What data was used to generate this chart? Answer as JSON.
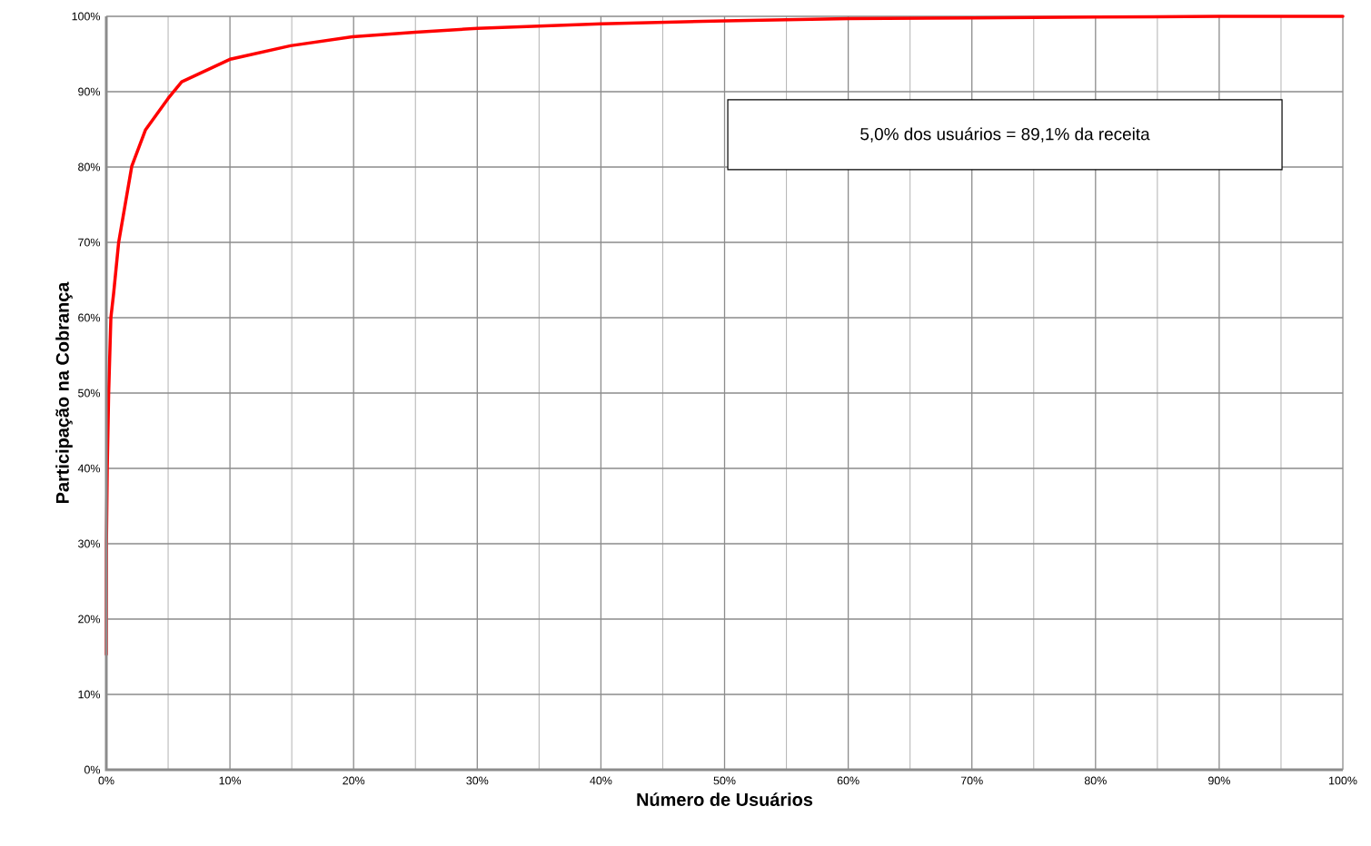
{
  "chart_data": {
    "type": "line",
    "xlabel": "Número de Usuários",
    "ylabel": "Participação na Cobrança",
    "annotations": [
      "5,0% dos usuários = 89,1% da receita"
    ],
    "x": [
      0,
      0.01,
      0.08,
      0.19,
      0.37,
      0.59,
      1.0,
      2.06,
      3.16,
      5.0,
      6.1,
      10.0,
      14.9,
      19.9,
      25,
      30,
      40,
      50,
      60,
      70,
      80,
      90,
      100
    ],
    "series": [
      {
        "color": "#ff0000",
        "values": [
          15.3,
          29.9,
          40.2,
          49.9,
          60,
          63.2,
          70.0,
          80.1,
          84.9,
          89.1,
          91.3,
          94.3,
          96.1,
          97.3,
          97.9,
          98.4,
          99.0,
          99.4,
          99.7,
          99.8,
          99.9,
          100,
          100
        ]
      }
    ],
    "xlim": [
      0,
      100
    ],
    "ylim": [
      0,
      100
    ],
    "xticks": [
      {
        "value": 0,
        "label": "0%"
      },
      {
        "value": 5,
        "label": null
      },
      {
        "value": 10,
        "label": "10%"
      },
      {
        "value": 15,
        "label": null
      },
      {
        "value": 20,
        "label": "20%"
      },
      {
        "value": 25,
        "label": null
      },
      {
        "value": 30,
        "label": "30%"
      },
      {
        "value": 35,
        "label": null
      },
      {
        "value": 40,
        "label": "40%"
      },
      {
        "value": 45,
        "label": null
      },
      {
        "value": 50,
        "label": "50%"
      },
      {
        "value": 55,
        "label": null
      },
      {
        "value": 60,
        "label": "60%"
      },
      {
        "value": 65,
        "label": null
      },
      {
        "value": 70,
        "label": "70%"
      },
      {
        "value": 75,
        "label": null
      },
      {
        "value": 80,
        "label": "80%"
      },
      {
        "value": 85,
        "label": null
      },
      {
        "value": 90,
        "label": "90%"
      },
      {
        "value": 95,
        "label": null
      },
      {
        "value": 100,
        "label": "100%"
      }
    ],
    "yticks": [
      {
        "value": 0,
        "label": "0%"
      },
      {
        "value": 10,
        "label": "10%"
      },
      {
        "value": 20,
        "label": "20%"
      },
      {
        "value": 30,
        "label": "30%"
      },
      {
        "value": 40,
        "label": "40%"
      },
      {
        "value": 50,
        "label": "50%"
      },
      {
        "value": 60,
        "label": "60%"
      },
      {
        "value": 70,
        "label": "70%"
      },
      {
        "value": 80,
        "label": "80%"
      },
      {
        "value": 90,
        "label": "90%"
      },
      {
        "value": 100,
        "label": "100%"
      }
    ],
    "grid": true,
    "marker": "none",
    "line_style": "solid"
  }
}
